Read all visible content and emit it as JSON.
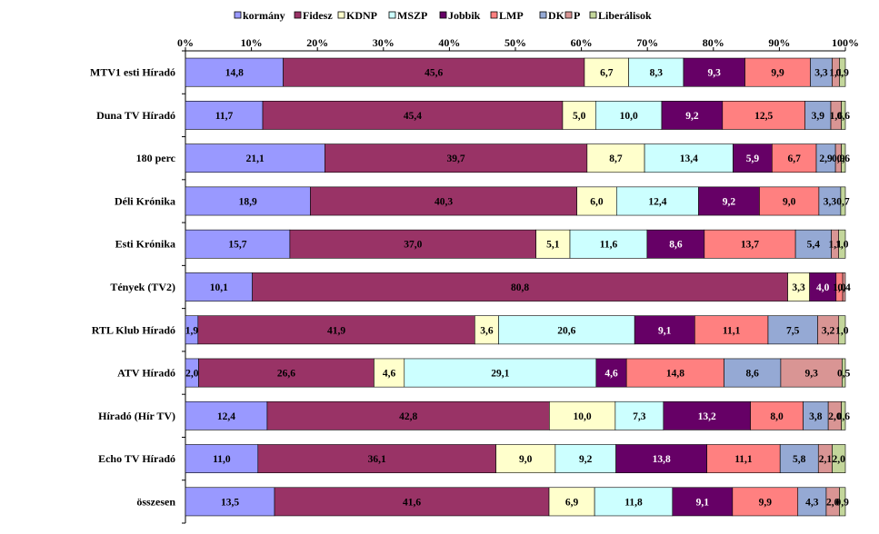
{
  "chart_data": {
    "type": "bar",
    "orientation": "horizontal",
    "stacked": "percent",
    "categories": [
      "MTV1 esti Híradó",
      "Duna TV Híradó",
      "180 perc",
      "Déli Krónika",
      "Esti Krónika",
      "Tények (TV2)",
      "RTL Klub Híradó",
      "ATV Híradó",
      "Híradó (Hír TV)",
      "Echo TV Híradó",
      "összesen"
    ],
    "series": [
      {
        "name": "kormány",
        "color": "#9999ff",
        "text_color": "#000000",
        "values": [
          14.8,
          11.7,
          21.1,
          18.9,
          15.7,
          10.1,
          1.9,
          2.0,
          12.4,
          11.0,
          13.5
        ]
      },
      {
        "name": "Fidesz",
        "color": "#993366",
        "text_color": "#000000",
        "values": [
          45.6,
          45.4,
          39.7,
          40.3,
          37.0,
          80.8,
          41.9,
          26.6,
          42.8,
          36.1,
          41.6
        ]
      },
      {
        "name": "KDNP",
        "color": "#ffffcc",
        "text_color": "#000000",
        "values": [
          6.7,
          5.0,
          8.7,
          6.0,
          5.1,
          3.3,
          3.6,
          4.6,
          10.0,
          9.0,
          6.9
        ]
      },
      {
        "name": "MSZP",
        "color": "#ccffff",
        "text_color": "#000000",
        "values": [
          8.3,
          10.0,
          13.4,
          12.4,
          11.6,
          0.0,
          20.6,
          29.1,
          7.3,
          9.2,
          11.8
        ]
      },
      {
        "name": "Jobbik",
        "color": "#660066",
        "text_color": "#ffffff",
        "values": [
          9.3,
          9.2,
          5.9,
          9.2,
          8.6,
          4.0,
          9.1,
          4.6,
          13.2,
          13.8,
          9.1
        ]
      },
      {
        "name": "LMP",
        "color": "#ff8080",
        "text_color": "#000000",
        "values": [
          9.9,
          12.5,
          6.7,
          9.0,
          13.7,
          1.0,
          11.1,
          14.8,
          8.0,
          11.1,
          9.9
        ]
      },
      {
        "name": "DK",
        "color": "#95a9d4",
        "text_color": "#000000",
        "values": [
          3.3,
          3.9,
          2.9,
          3.3,
          5.4,
          0.0,
          7.5,
          8.6,
          3.8,
          5.8,
          4.3
        ]
      },
      {
        "name": "P",
        "color": "#d99594",
        "text_color": "#000000",
        "values": [
          1.1,
          1.6,
          0.9,
          0.0,
          1.1,
          0.4,
          3.2,
          9.3,
          2.0,
          2.1,
          2.0
        ]
      },
      {
        "name": "Liberálisok",
        "color": "#c3d69b",
        "text_color": "#000000",
        "values": [
          0.9,
          0.6,
          0.6,
          0.7,
          1.0,
          0.0,
          1.0,
          0.5,
          0.6,
          2.0,
          0.9
        ]
      }
    ],
    "x_ticks": [
      "0%",
      "10%",
      "20%",
      "30%",
      "40%",
      "50%",
      "60%",
      "70%",
      "80%",
      "90%",
      "100%"
    ],
    "xlim": [
      0,
      100
    ],
    "legend_position": "top",
    "grid": false,
    "title": "",
    "xlabel": "",
    "ylabel": ""
  }
}
